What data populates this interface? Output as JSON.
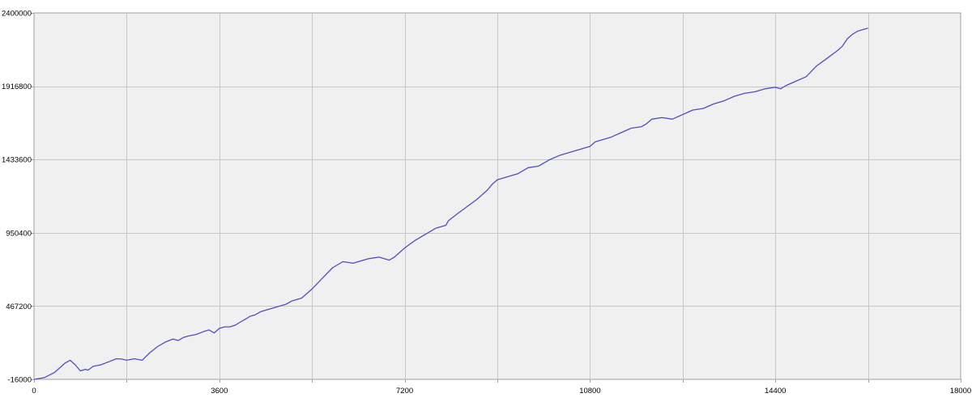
{
  "colors": {
    "plot_background": "#f0f0f0",
    "grid": "#c8c8c8",
    "line": "#4f4fbf",
    "axis": "#a0a0a0"
  },
  "chart_data": {
    "type": "line",
    "title": "",
    "xlabel": "",
    "ylabel": "",
    "xlim": [
      0,
      18000
    ],
    "ylim": [
      -16000,
      2400000
    ],
    "grid": true,
    "legend": "none",
    "x_ticks": [
      0,
      3600,
      7200,
      10800,
      14400,
      18000
    ],
    "x_minor_ticks": [
      1800,
      5400,
      9000,
      12600,
      16200
    ],
    "y_ticks": [
      -16000,
      467200,
      950400,
      1433600,
      1916800,
      2400000
    ],
    "x_tick_labels": [
      "0",
      "3600",
      "7200",
      "10800",
      "14400",
      "18000"
    ],
    "y_tick_labels": [
      "-16000",
      "467200",
      "950400",
      "1433600",
      "1916800",
      "2400000"
    ],
    "series": [
      {
        "x": [
          0,
          200,
          400,
          600,
          700,
          800,
          900,
          1000,
          1050,
          1150,
          1300,
          1450,
          1600,
          1700,
          1800,
          1950,
          2100,
          2250,
          2400,
          2550,
          2700,
          2800,
          2900,
          3000,
          3150,
          3300,
          3400,
          3500,
          3600,
          3700,
          3800,
          3900,
          4000,
          4100,
          4200,
          4300,
          4400,
          4500,
          4600,
          4700,
          4800,
          4900,
          5000,
          5200,
          5400,
          5600,
          5800,
          6000,
          6200,
          6400,
          6500,
          6700,
          6800,
          6900,
          7000,
          7200,
          7400,
          7600,
          7800,
          8000,
          8050,
          8200,
          8400,
          8600,
          8800,
          8900,
          9000,
          9200,
          9400,
          9600,
          9800,
          10000,
          10200,
          10400,
          10600,
          10700,
          10800,
          10900,
          11000,
          11200,
          11400,
          11600,
          11800,
          11900,
          12000,
          12200,
          12400,
          12600,
          12800,
          13000,
          13200,
          13400,
          13600,
          13800,
          14000,
          14200,
          14400,
          14500,
          14600,
          14800,
          15000,
          15200,
          15400,
          15600,
          15700,
          15800,
          15900,
          16000,
          16100,
          16200
        ],
        "values": [
          -16000,
          -5000,
          30000,
          90000,
          110000,
          80000,
          40000,
          50000,
          45000,
          70000,
          80000,
          100000,
          120000,
          118000,
          110000,
          120000,
          110000,
          160000,
          200000,
          230000,
          250000,
          240000,
          260000,
          270000,
          280000,
          300000,
          310000,
          290000,
          320000,
          330000,
          330000,
          340000,
          360000,
          380000,
          400000,
          410000,
          430000,
          440000,
          450000,
          460000,
          470000,
          480000,
          500000,
          520000,
          580000,
          650000,
          720000,
          760000,
          750000,
          770000,
          780000,
          790000,
          780000,
          770000,
          790000,
          850000,
          900000,
          940000,
          980000,
          1000000,
          1030000,
          1070000,
          1120000,
          1170000,
          1230000,
          1270000,
          1300000,
          1320000,
          1340000,
          1380000,
          1390000,
          1430000,
          1460000,
          1480000,
          1500000,
          1510000,
          1520000,
          1550000,
          1560000,
          1580000,
          1610000,
          1640000,
          1650000,
          1670000,
          1700000,
          1710000,
          1700000,
          1730000,
          1760000,
          1770000,
          1800000,
          1820000,
          1850000,
          1870000,
          1880000,
          1900000,
          1910000,
          1900000,
          1920000,
          1950000,
          1980000,
          2050000,
          2100000,
          2150000,
          2180000,
          2230000,
          2260000,
          2280000,
          2290000,
          2300000
        ]
      }
    ]
  }
}
